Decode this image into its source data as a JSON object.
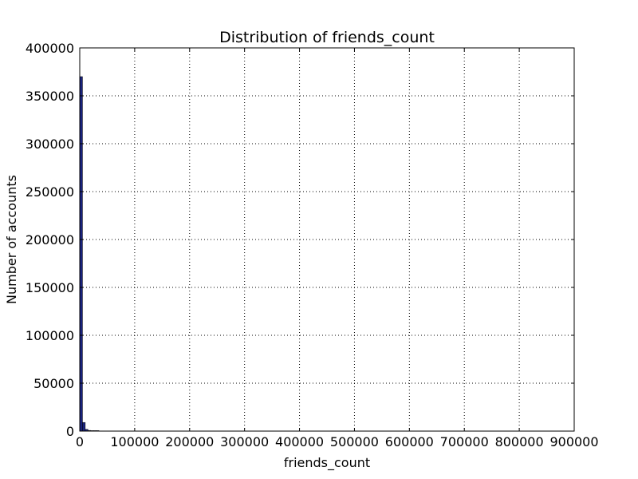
{
  "chart_data": {
    "type": "bar",
    "title": "Distribution of friends_count",
    "xlabel": "friends_count",
    "ylabel": "Number of accounts",
    "xlim": [
      0,
      900000
    ],
    "ylim": [
      0,
      400000
    ],
    "x_ticks": [
      "0",
      "100000",
      "200000",
      "300000",
      "400000",
      "500000",
      "600000",
      "700000",
      "800000",
      "900000"
    ],
    "y_ticks": [
      "0",
      "50000",
      "100000",
      "150000",
      "200000",
      "250000",
      "300000",
      "350000",
      "400000"
    ],
    "grid": true,
    "bar_color": "#1a237e",
    "bins": [
      {
        "x0": 0,
        "x1": 5000,
        "value": 370000
      },
      {
        "x0": 5000,
        "x1": 10000,
        "value": 9000
      },
      {
        "x0": 10000,
        "x1": 15000,
        "value": 1800
      },
      {
        "x0": 15000,
        "x1": 20000,
        "value": 700
      },
      {
        "x0": 20000,
        "x1": 25000,
        "value": 300
      },
      {
        "x0": 25000,
        "x1": 30000,
        "value": 150
      },
      {
        "x0": 30000,
        "x1": 35000,
        "value": 80
      }
    ]
  }
}
